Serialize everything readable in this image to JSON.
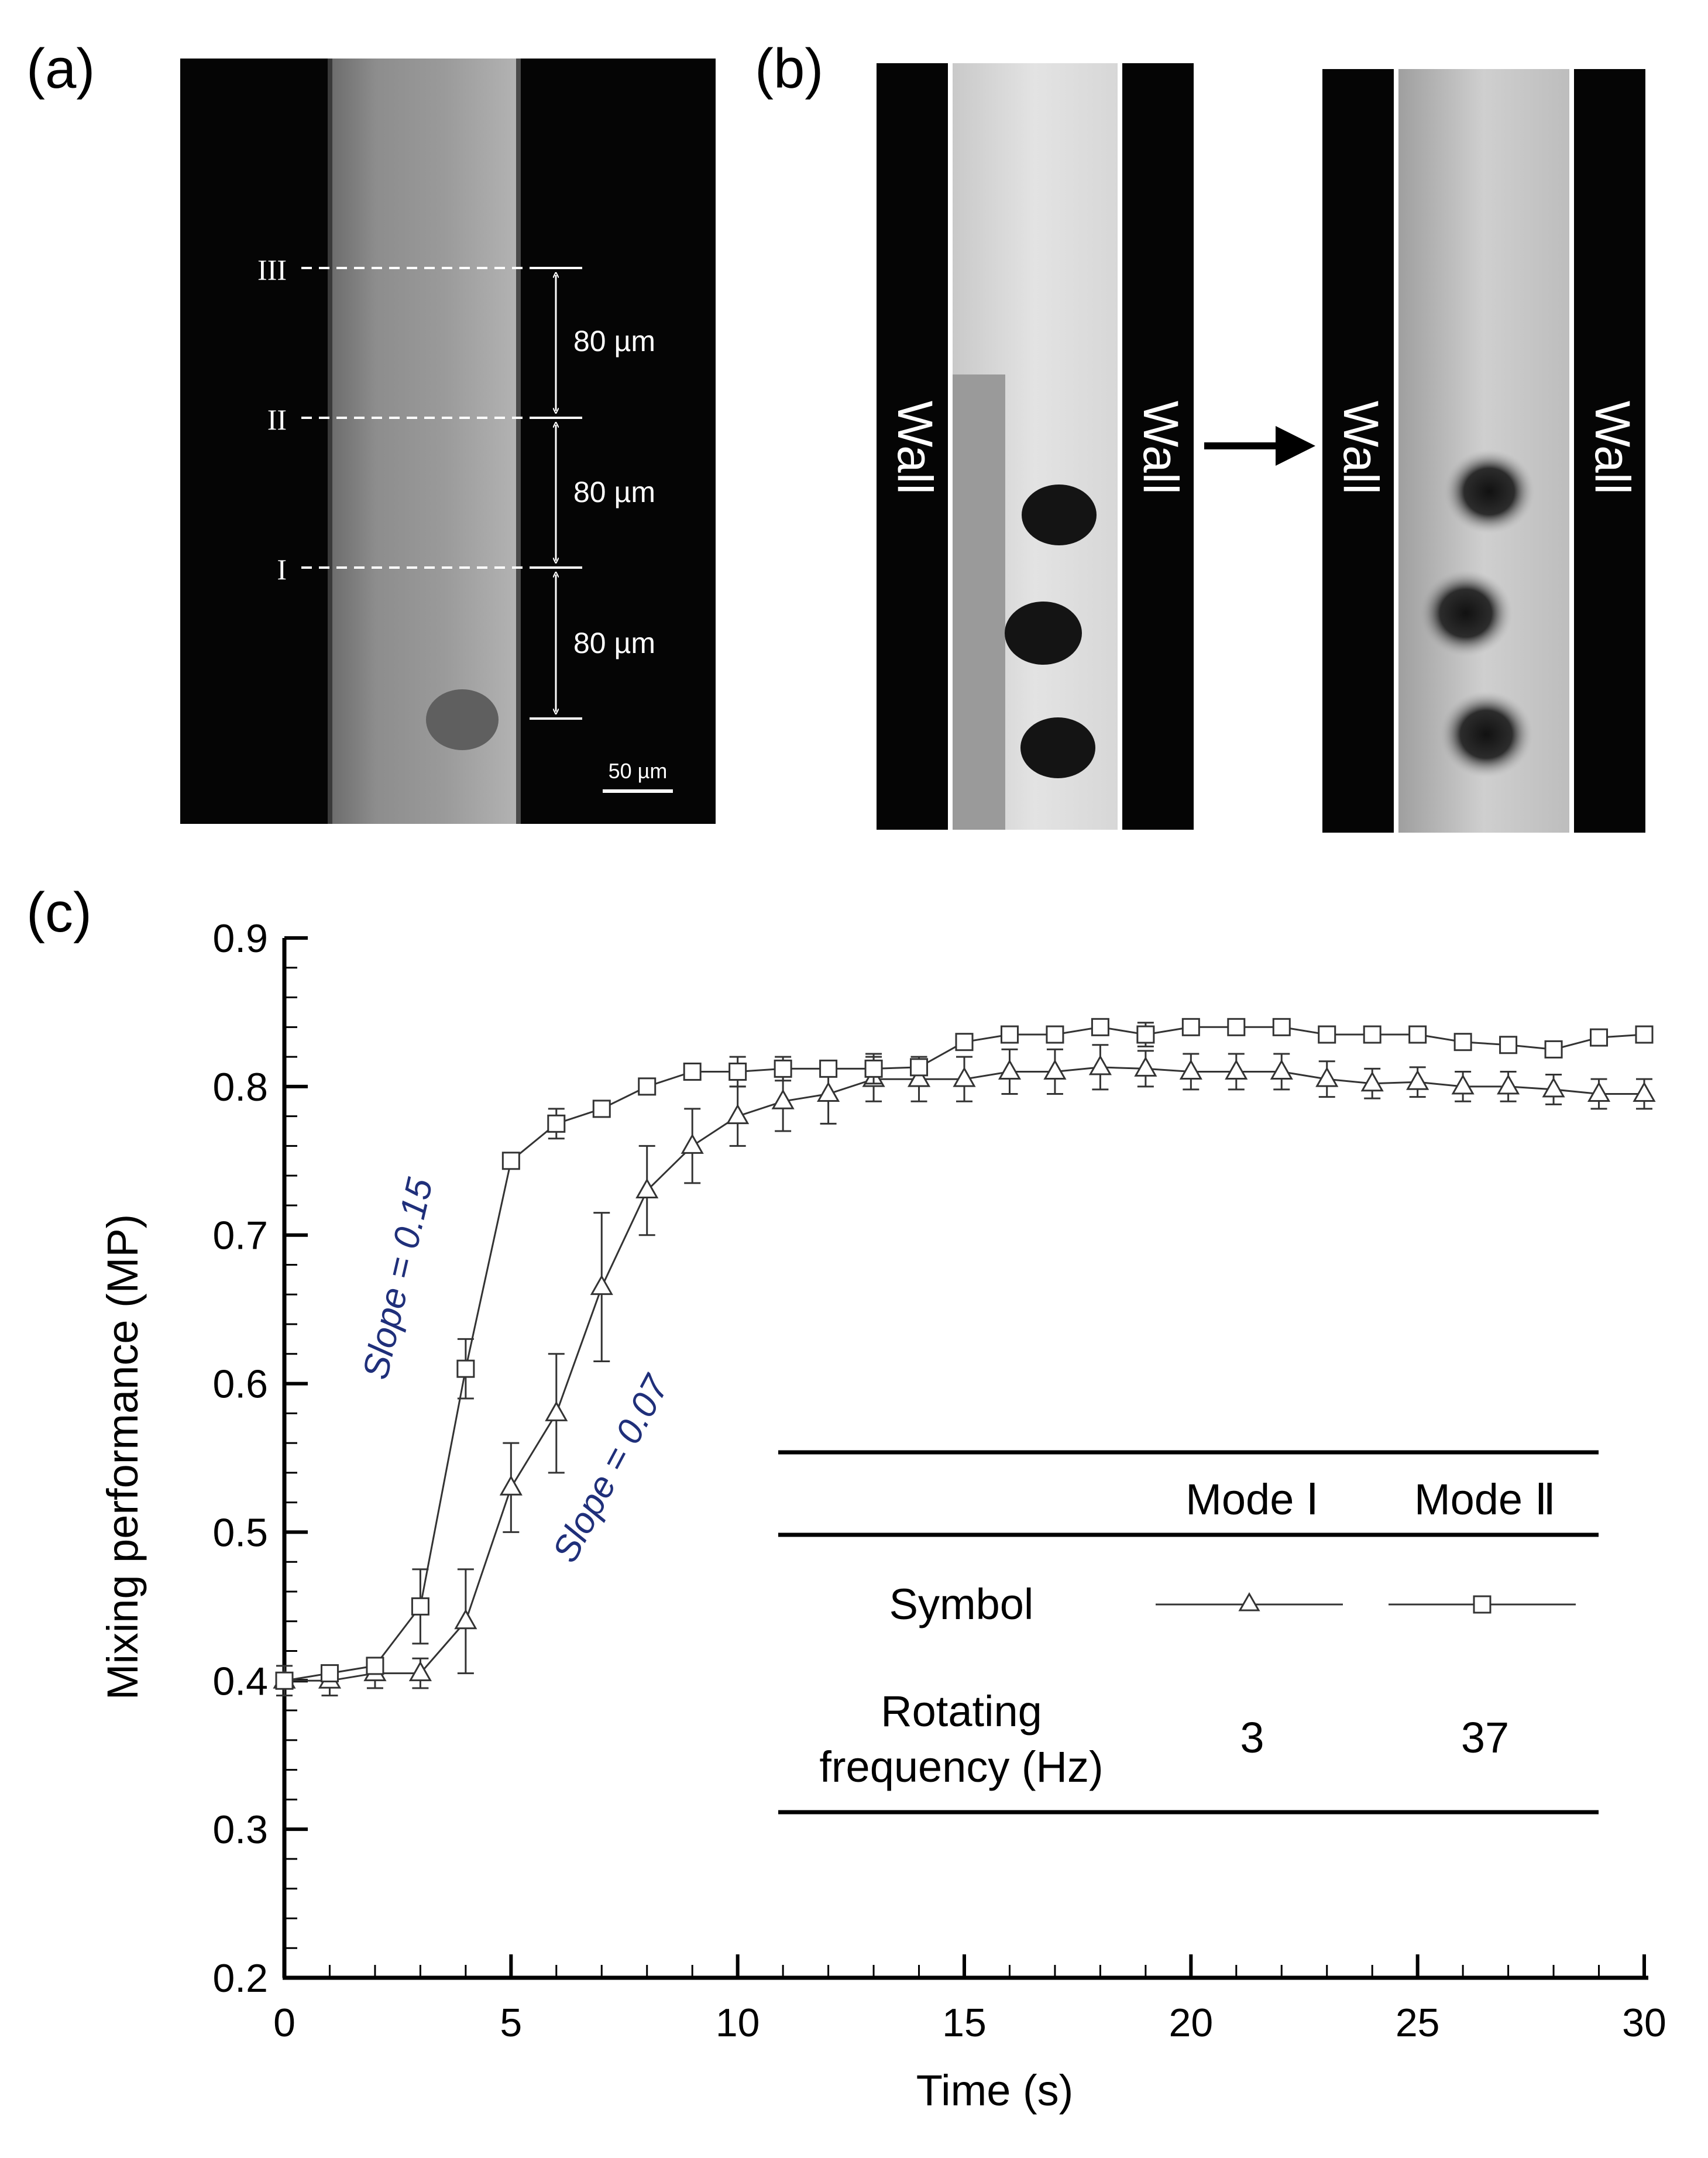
{
  "panels": {
    "a": {
      "label": "(a)",
      "sections": [
        "III",
        "II",
        "I"
      ],
      "spacings": [
        "80 µm",
        "80 µm",
        "80 µm"
      ],
      "scalebar": "50 µm"
    },
    "b": {
      "label": "(b)",
      "wall_text": "Wall"
    },
    "c": {
      "label": "(c)"
    }
  },
  "chart_data": {
    "type": "line",
    "xlabel": "Time (s)",
    "ylabel": "Mixing performance (MP)",
    "xlim": [
      0,
      30
    ],
    "ylim": [
      0.2,
      0.9
    ],
    "xticks": [
      "0",
      "5",
      "10",
      "15",
      "20",
      "25",
      "30"
    ],
    "yticks": [
      "0.2",
      "0.3",
      "0.4",
      "0.5",
      "0.6",
      "0.7",
      "0.8",
      "0.9"
    ],
    "series": [
      {
        "name": "Mode I",
        "marker": "triangle",
        "x": [
          0,
          1,
          2,
          3,
          4,
          5,
          6,
          7,
          8,
          9,
          10,
          11,
          12,
          13,
          14,
          15,
          16,
          17,
          18,
          19,
          20,
          21,
          22,
          23,
          24,
          25,
          26,
          27,
          28,
          29,
          30
        ],
        "y": [
          0.4,
          0.4,
          0.405,
          0.405,
          0.44,
          0.53,
          0.58,
          0.665,
          0.73,
          0.76,
          0.78,
          0.79,
          0.795,
          0.805,
          0.805,
          0.805,
          0.81,
          0.81,
          0.813,
          0.812,
          0.81,
          0.81,
          0.81,
          0.805,
          0.802,
          0.803,
          0.8,
          0.8,
          0.798,
          0.795,
          0.795
        ],
        "err": [
          0.01,
          0.01,
          0.01,
          0.01,
          0.035,
          0.03,
          0.04,
          0.05,
          0.03,
          0.025,
          0.02,
          0.02,
          0.02,
          0.015,
          0.015,
          0.015,
          0.015,
          0.015,
          0.015,
          0.012,
          0.012,
          0.012,
          0.012,
          0.012,
          0.01,
          0.01,
          0.01,
          0.01,
          0.01,
          0.01,
          0.01
        ]
      },
      {
        "name": "Mode II",
        "marker": "square",
        "x": [
          0,
          1,
          2,
          3,
          4,
          5,
          6,
          7,
          8,
          9,
          10,
          11,
          12,
          13,
          14,
          15,
          16,
          17,
          18,
          19,
          20,
          21,
          22,
          23,
          24,
          25,
          26,
          27,
          28,
          29,
          30
        ],
        "y": [
          0.4,
          0.405,
          0.41,
          0.45,
          0.61,
          0.75,
          0.775,
          0.785,
          0.8,
          0.81,
          0.81,
          0.812,
          0.812,
          0.812,
          0.813,
          0.83,
          0.835,
          0.835,
          0.84,
          0.835,
          0.84,
          0.84,
          0.84,
          0.835,
          0.835,
          0.835,
          0.83,
          0.828,
          0.825,
          0.833,
          0.835
        ],
        "err": [
          0.005,
          0.005,
          0.005,
          0.025,
          0.02,
          0.005,
          0.01,
          0.005,
          0.005,
          0.005,
          0.01,
          0.008,
          0.005,
          0.01,
          0.005,
          0.005,
          0.005,
          0.005,
          0.005,
          0.008,
          0.005,
          0.005,
          0.005,
          0.005,
          0.005,
          0.005,
          0.005,
          0.005,
          0.005,
          0.005,
          0.005
        ]
      }
    ],
    "annotations": [
      "Slope = 0.15",
      "Slope = 0.07"
    ],
    "legend_table": {
      "col1": "Mode Ⅰ",
      "col2": "Mode Ⅱ",
      "row_symbol": "Symbol",
      "row_freq_line1": "Rotating",
      "row_freq_line2": "frequency (Hz)",
      "freq_mode1": "3",
      "freq_mode2": "37"
    },
    "colors": {
      "line": "#333333",
      "annotation": "#1f2f7a"
    }
  }
}
